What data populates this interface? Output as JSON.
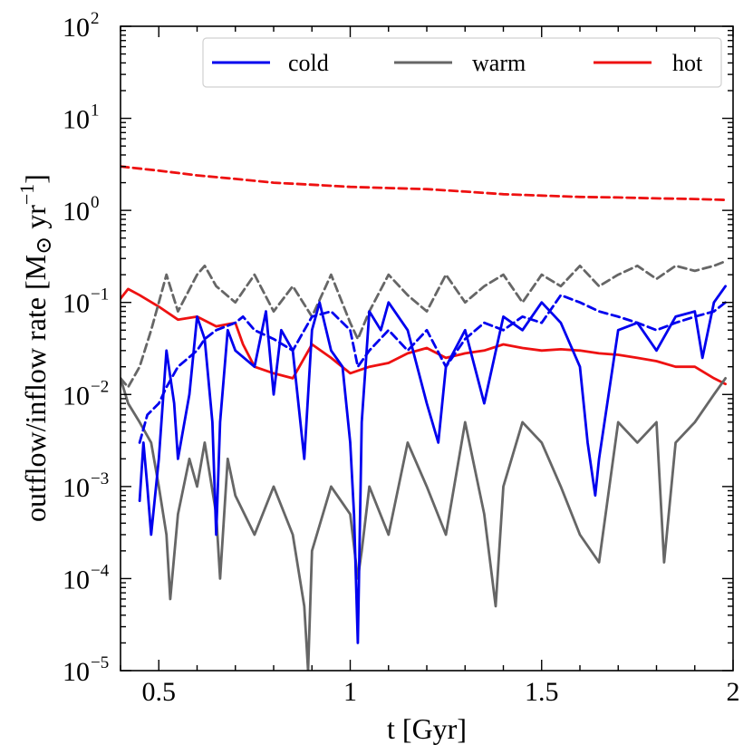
{
  "chart_data": {
    "type": "line",
    "title": "",
    "xlabel": "t [Gyr]",
    "ylabel": "outflow/inflow rate [M⊙ yr−1]",
    "ylabel_parts": {
      "main": "outflow/inflow rate [M",
      "sun": "⊙",
      "unit": " yr",
      "exp": "−1",
      "close": "]"
    },
    "xlim": [
      0.4,
      2.0
    ],
    "ylim": [
      1e-05,
      100
    ],
    "yscale": "log",
    "xticks": [
      {
        "value": 0.5,
        "label": "0.5"
      },
      {
        "value": 1.0,
        "label": "1"
      },
      {
        "value": 1.5,
        "label": "1.5"
      },
      {
        "value": 2.0,
        "label": "2"
      }
    ],
    "yticks": [
      {
        "value": 1e-05,
        "base": "10",
        "exp": "−5"
      },
      {
        "value": 0.0001,
        "base": "10",
        "exp": "−4"
      },
      {
        "value": 0.001,
        "base": "10",
        "exp": "−3"
      },
      {
        "value": 0.01,
        "base": "10",
        "exp": "−2"
      },
      {
        "value": 0.1,
        "base": "10",
        "exp": "−1"
      },
      {
        "value": 1,
        "base": "10",
        "exp": "0"
      },
      {
        "value": 10,
        "base": "10",
        "exp": "1"
      },
      {
        "value": 100,
        "base": "10",
        "exp": "2"
      }
    ],
    "legend": {
      "placement": "top-right",
      "entries": [
        "cold",
        "warm",
        "hot"
      ]
    },
    "line_styles": {
      "solid": "outflow",
      "dashed": "inflow"
    },
    "colors": {
      "cold": "#0000ee",
      "warm": "#666666",
      "hot": "#ee1111"
    },
    "series": [
      {
        "name": "hot",
        "style": "dashed",
        "x": [
          0.4,
          0.5,
          0.6,
          0.7,
          0.8,
          0.9,
          1.0,
          1.1,
          1.2,
          1.3,
          1.4,
          1.5,
          1.6,
          1.7,
          1.8,
          1.9,
          1.98
        ],
        "y": [
          3.0,
          2.7,
          2.4,
          2.2,
          2.0,
          1.9,
          1.8,
          1.75,
          1.7,
          1.6,
          1.5,
          1.45,
          1.4,
          1.38,
          1.35,
          1.33,
          1.3
        ]
      },
      {
        "name": "hot",
        "style": "solid",
        "x": [
          0.4,
          0.42,
          0.45,
          0.5,
          0.55,
          0.6,
          0.65,
          0.7,
          0.72,
          0.75,
          0.8,
          0.85,
          0.9,
          0.95,
          1.0,
          1.05,
          1.1,
          1.15,
          1.2,
          1.25,
          1.3,
          1.35,
          1.4,
          1.45,
          1.5,
          1.55,
          1.6,
          1.65,
          1.7,
          1.75,
          1.8,
          1.85,
          1.9,
          1.95,
          1.98
        ],
        "y": [
          0.11,
          0.14,
          0.12,
          0.09,
          0.065,
          0.07,
          0.055,
          0.06,
          0.035,
          0.02,
          0.017,
          0.015,
          0.035,
          0.025,
          0.017,
          0.02,
          0.022,
          0.028,
          0.032,
          0.025,
          0.028,
          0.03,
          0.035,
          0.032,
          0.03,
          0.031,
          0.03,
          0.028,
          0.027,
          0.025,
          0.023,
          0.02,
          0.02,
          0.015,
          0.013
        ]
      },
      {
        "name": "warm",
        "style": "dashed",
        "x": [
          0.4,
          0.42,
          0.45,
          0.48,
          0.5,
          0.52,
          0.55,
          0.6,
          0.62,
          0.65,
          0.7,
          0.75,
          0.8,
          0.85,
          0.9,
          0.95,
          1.0,
          1.02,
          1.05,
          1.1,
          1.15,
          1.2,
          1.25,
          1.3,
          1.35,
          1.4,
          1.45,
          1.5,
          1.55,
          1.6,
          1.65,
          1.7,
          1.75,
          1.8,
          1.85,
          1.9,
          1.95,
          1.98
        ],
        "y": [
          0.015,
          0.012,
          0.02,
          0.05,
          0.1,
          0.2,
          0.08,
          0.2,
          0.25,
          0.15,
          0.1,
          0.2,
          0.08,
          0.15,
          0.07,
          0.2,
          0.06,
          0.04,
          0.08,
          0.2,
          0.12,
          0.08,
          0.2,
          0.1,
          0.15,
          0.2,
          0.1,
          0.2,
          0.15,
          0.25,
          0.15,
          0.2,
          0.25,
          0.18,
          0.25,
          0.22,
          0.25,
          0.28
        ]
      },
      {
        "name": "warm",
        "style": "solid",
        "x": [
          0.4,
          0.42,
          0.45,
          0.48,
          0.5,
          0.52,
          0.53,
          0.55,
          0.58,
          0.6,
          0.62,
          0.65,
          0.66,
          0.68,
          0.7,
          0.75,
          0.8,
          0.85,
          0.88,
          0.89,
          0.9,
          0.95,
          1.0,
          1.02,
          1.03,
          1.05,
          1.1,
          1.15,
          1.2,
          1.25,
          1.3,
          1.35,
          1.38,
          1.4,
          1.45,
          1.5,
          1.55,
          1.6,
          1.65,
          1.7,
          1.75,
          1.8,
          1.82,
          1.85,
          1.9,
          1.95,
          1.98
        ],
        "y": [
          0.015,
          0.008,
          0.005,
          0.003,
          0.001,
          0.0003,
          6e-05,
          0.0005,
          0.002,
          0.001,
          0.003,
          0.0005,
          0.0001,
          0.002,
          0.0008,
          0.0003,
          0.001,
          0.0003,
          5e-05,
          1e-05,
          0.0002,
          0.001,
          0.0005,
          0.0001,
          0.0002,
          0.001,
          0.0003,
          0.003,
          0.001,
          0.0003,
          0.005,
          0.0005,
          5e-05,
          0.001,
          0.005,
          0.003,
          0.001,
          0.0003,
          0.00015,
          0.005,
          0.003,
          0.005,
          0.00015,
          0.003,
          0.005,
          0.01,
          0.015
        ]
      },
      {
        "name": "cold",
        "style": "dashed",
        "x": [
          0.45,
          0.47,
          0.5,
          0.52,
          0.55,
          0.6,
          0.62,
          0.65,
          0.7,
          0.72,
          0.75,
          0.8,
          0.85,
          0.9,
          0.95,
          1.0,
          1.02,
          1.05,
          1.1,
          1.15,
          1.2,
          1.25,
          1.3,
          1.35,
          1.4,
          1.45,
          1.5,
          1.55,
          1.6,
          1.65,
          1.7,
          1.75,
          1.8,
          1.85,
          1.9,
          1.95,
          1.98
        ],
        "y": [
          0.003,
          0.006,
          0.008,
          0.012,
          0.02,
          0.03,
          0.04,
          0.05,
          0.06,
          0.07,
          0.05,
          0.04,
          0.03,
          0.07,
          0.08,
          0.05,
          0.02,
          0.03,
          0.05,
          0.03,
          0.05,
          0.02,
          0.04,
          0.06,
          0.05,
          0.07,
          0.06,
          0.12,
          0.1,
          0.08,
          0.07,
          0.06,
          0.05,
          0.06,
          0.07,
          0.08,
          0.1
        ]
      },
      {
        "name": "cold",
        "style": "solid",
        "x": [
          0.45,
          0.46,
          0.47,
          0.48,
          0.5,
          0.52,
          0.54,
          0.55,
          0.58,
          0.6,
          0.62,
          0.64,
          0.65,
          0.66,
          0.68,
          0.7,
          0.75,
          0.78,
          0.8,
          0.82,
          0.85,
          0.88,
          0.9,
          0.92,
          0.95,
          0.98,
          1.0,
          1.01,
          1.02,
          1.03,
          1.05,
          1.08,
          1.1,
          1.15,
          1.2,
          1.23,
          1.25,
          1.3,
          1.35,
          1.4,
          1.45,
          1.5,
          1.55,
          1.6,
          1.62,
          1.64,
          1.65,
          1.7,
          1.75,
          1.8,
          1.85,
          1.9,
          1.92,
          1.95,
          1.98
        ],
        "y": [
          0.0007,
          0.003,
          0.001,
          0.0003,
          0.002,
          0.03,
          0.008,
          0.002,
          0.01,
          0.07,
          0.04,
          0.005,
          0.0003,
          0.005,
          0.05,
          0.03,
          0.02,
          0.08,
          0.01,
          0.05,
          0.03,
          0.002,
          0.05,
          0.1,
          0.03,
          0.02,
          0.003,
          0.0005,
          2e-05,
          0.005,
          0.08,
          0.05,
          0.1,
          0.05,
          0.008,
          0.003,
          0.02,
          0.05,
          0.008,
          0.07,
          0.05,
          0.1,
          0.06,
          0.02,
          0.003,
          0.0008,
          0.002,
          0.05,
          0.06,
          0.03,
          0.07,
          0.08,
          0.025,
          0.1,
          0.15
        ]
      }
    ]
  }
}
